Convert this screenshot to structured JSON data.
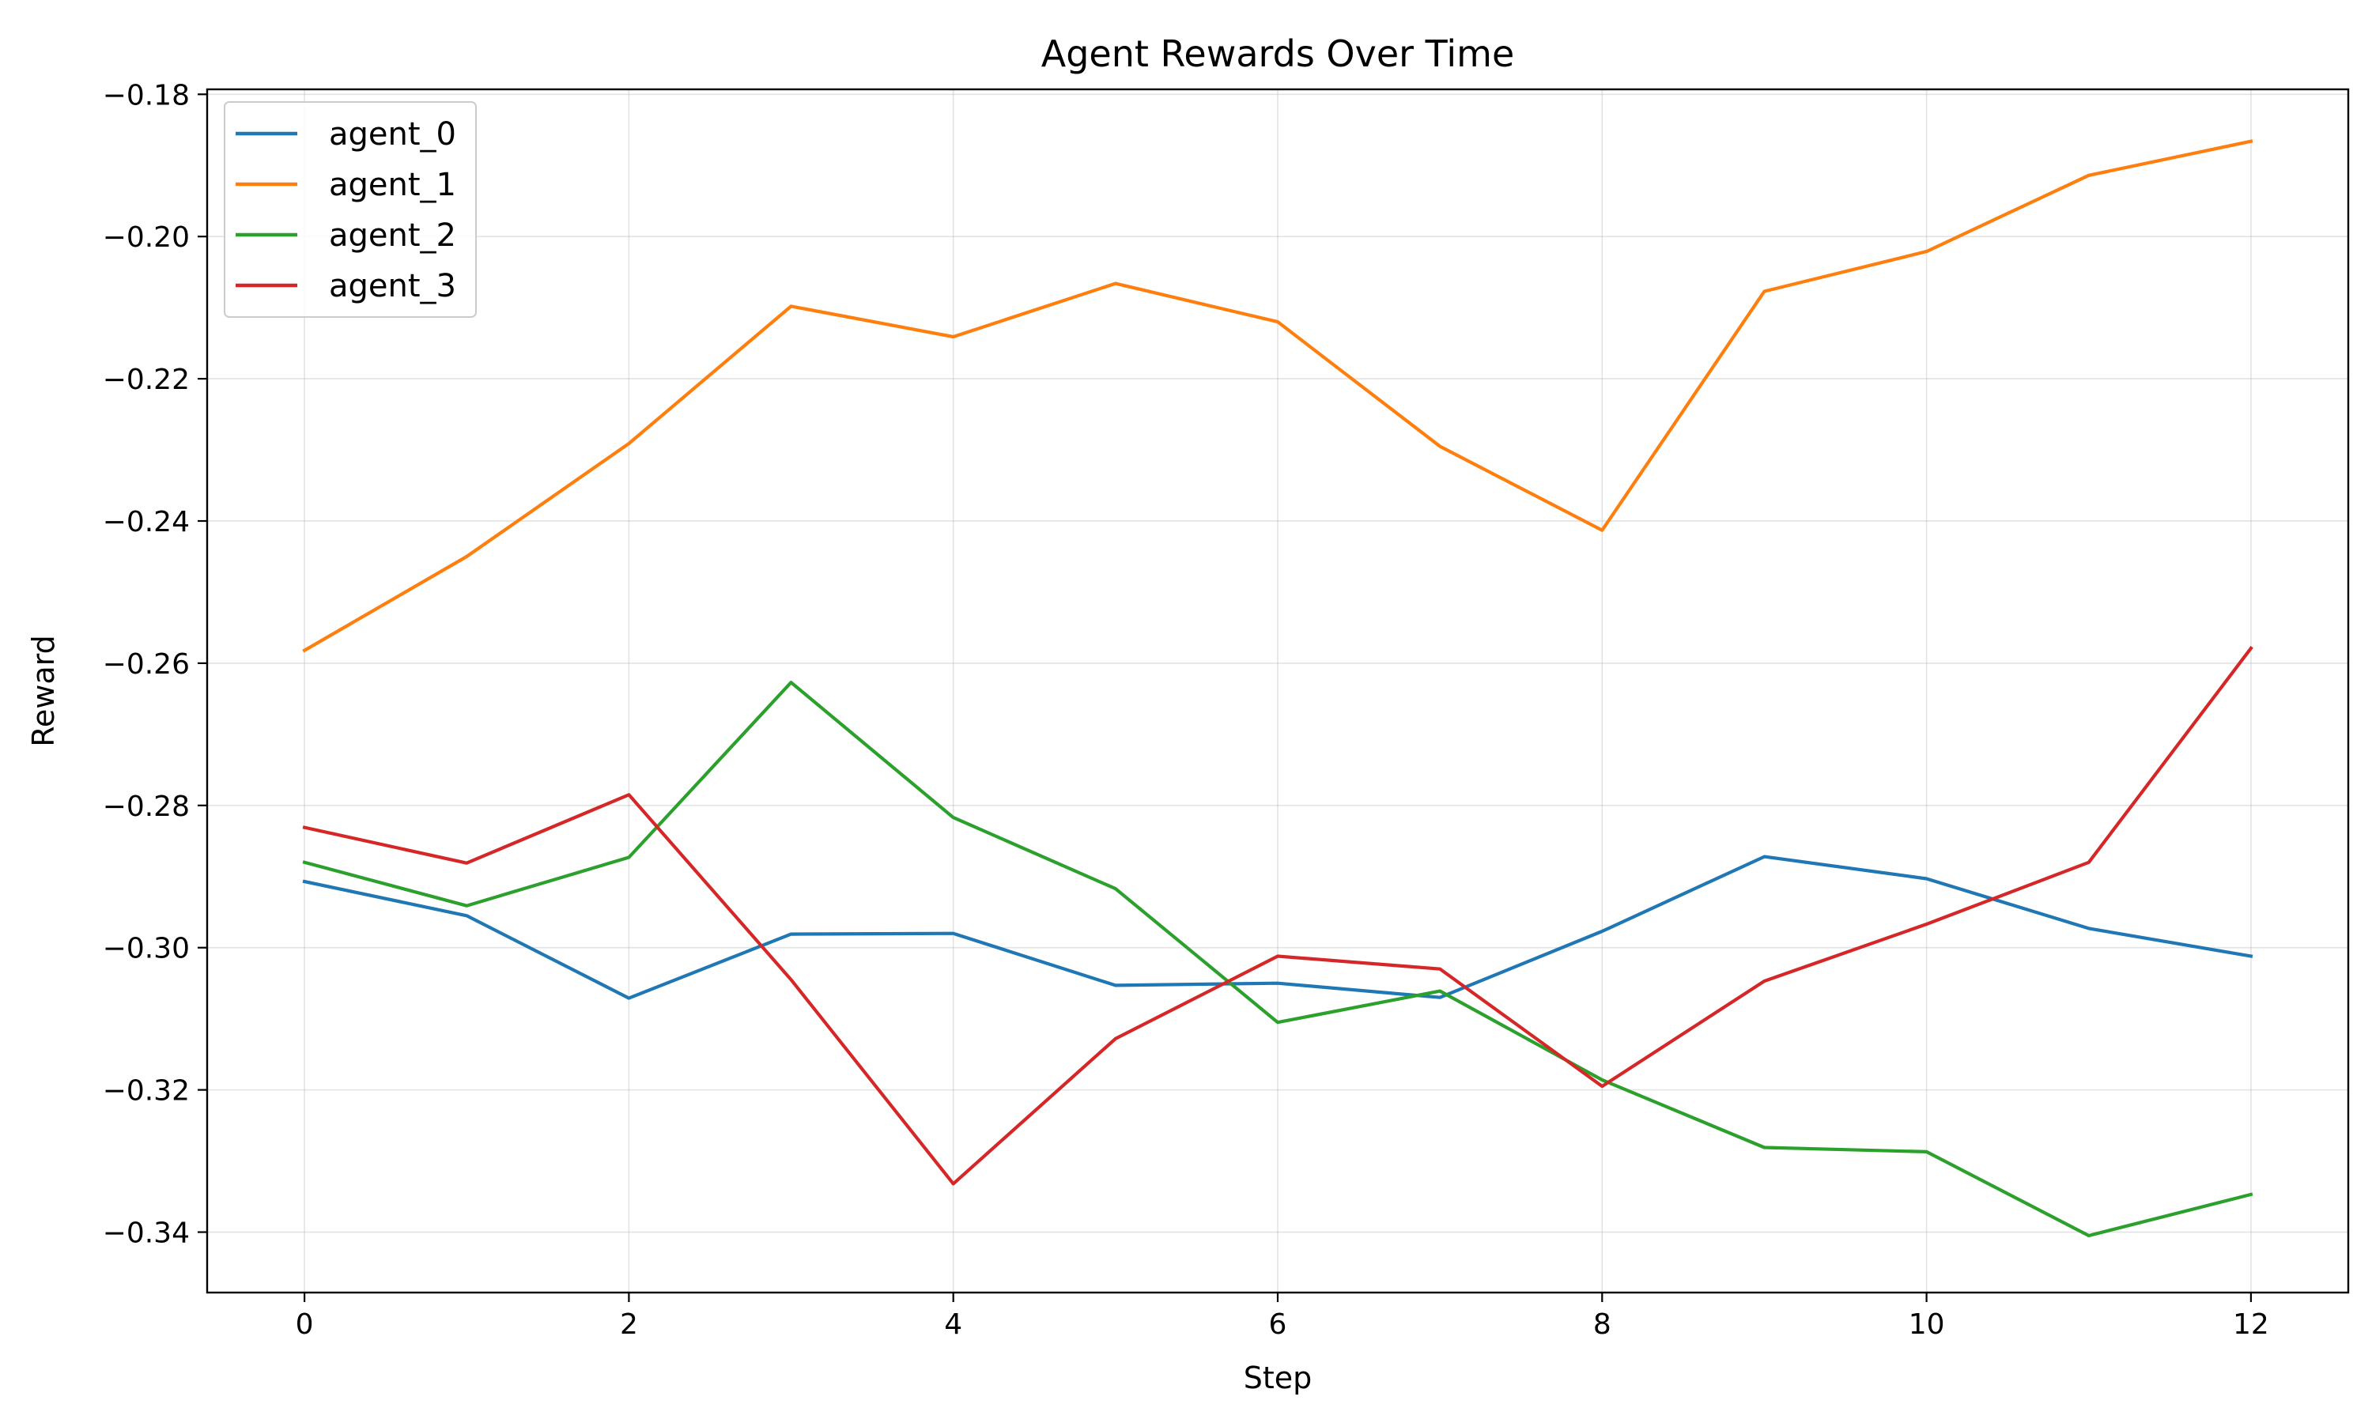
{
  "chart_data": {
    "type": "line",
    "title": "Agent Rewards Over Time",
    "xlabel": "Step",
    "ylabel": "Reward",
    "xlim": [
      -0.6,
      12.6
    ],
    "ylim": [
      -0.3485,
      -0.1793
    ],
    "grid": true,
    "legend_position": "top-left",
    "x": [
      0,
      1,
      2,
      3,
      4,
      5,
      6,
      7,
      8,
      9,
      10,
      11,
      12
    ],
    "x_ticks": [
      0,
      2,
      4,
      6,
      8,
      10,
      12
    ],
    "x_tick_labels": [
      "0",
      "2",
      "4",
      "6",
      "8",
      "10",
      "12"
    ],
    "y_ticks": [
      -0.34,
      -0.32,
      -0.3,
      -0.28,
      -0.26,
      -0.24,
      -0.22,
      -0.2,
      -0.18
    ],
    "y_tick_labels": [
      "−0.34",
      "−0.32",
      "−0.30",
      "−0.28",
      "−0.26",
      "−0.24",
      "−0.22",
      "−0.20",
      "−0.18"
    ],
    "series": [
      {
        "name": "agent_0",
        "color": "#1f77b4",
        "values": [
          -0.2907,
          -0.2955,
          -0.3071,
          -0.2981,
          -0.298,
          -0.3053,
          -0.305,
          -0.307,
          -0.2977,
          -0.2872,
          -0.2903,
          -0.2973,
          -0.3012
        ]
      },
      {
        "name": "agent_1",
        "color": "#ff7f0e",
        "values": [
          -0.2582,
          -0.245,
          -0.2291,
          -0.2098,
          -0.2141,
          -0.2066,
          -0.212,
          -0.2295,
          -0.2413,
          -0.2077,
          -0.2021,
          -0.1914,
          -0.1866
        ]
      },
      {
        "name": "agent_2",
        "color": "#2ca02c",
        "values": [
          -0.288,
          -0.2941,
          -0.2873,
          -0.2627,
          -0.2817,
          -0.2917,
          -0.3105,
          -0.3061,
          -0.3186,
          -0.3281,
          -0.3287,
          -0.3405,
          -0.3347
        ]
      },
      {
        "name": "agent_3",
        "color": "#d62728",
        "values": [
          -0.2831,
          -0.2881,
          -0.2785,
          -0.3045,
          -0.3332,
          -0.3128,
          -0.3012,
          -0.303,
          -0.3195,
          -0.3047,
          -0.2967,
          -0.288,
          -0.2579
        ]
      }
    ]
  }
}
